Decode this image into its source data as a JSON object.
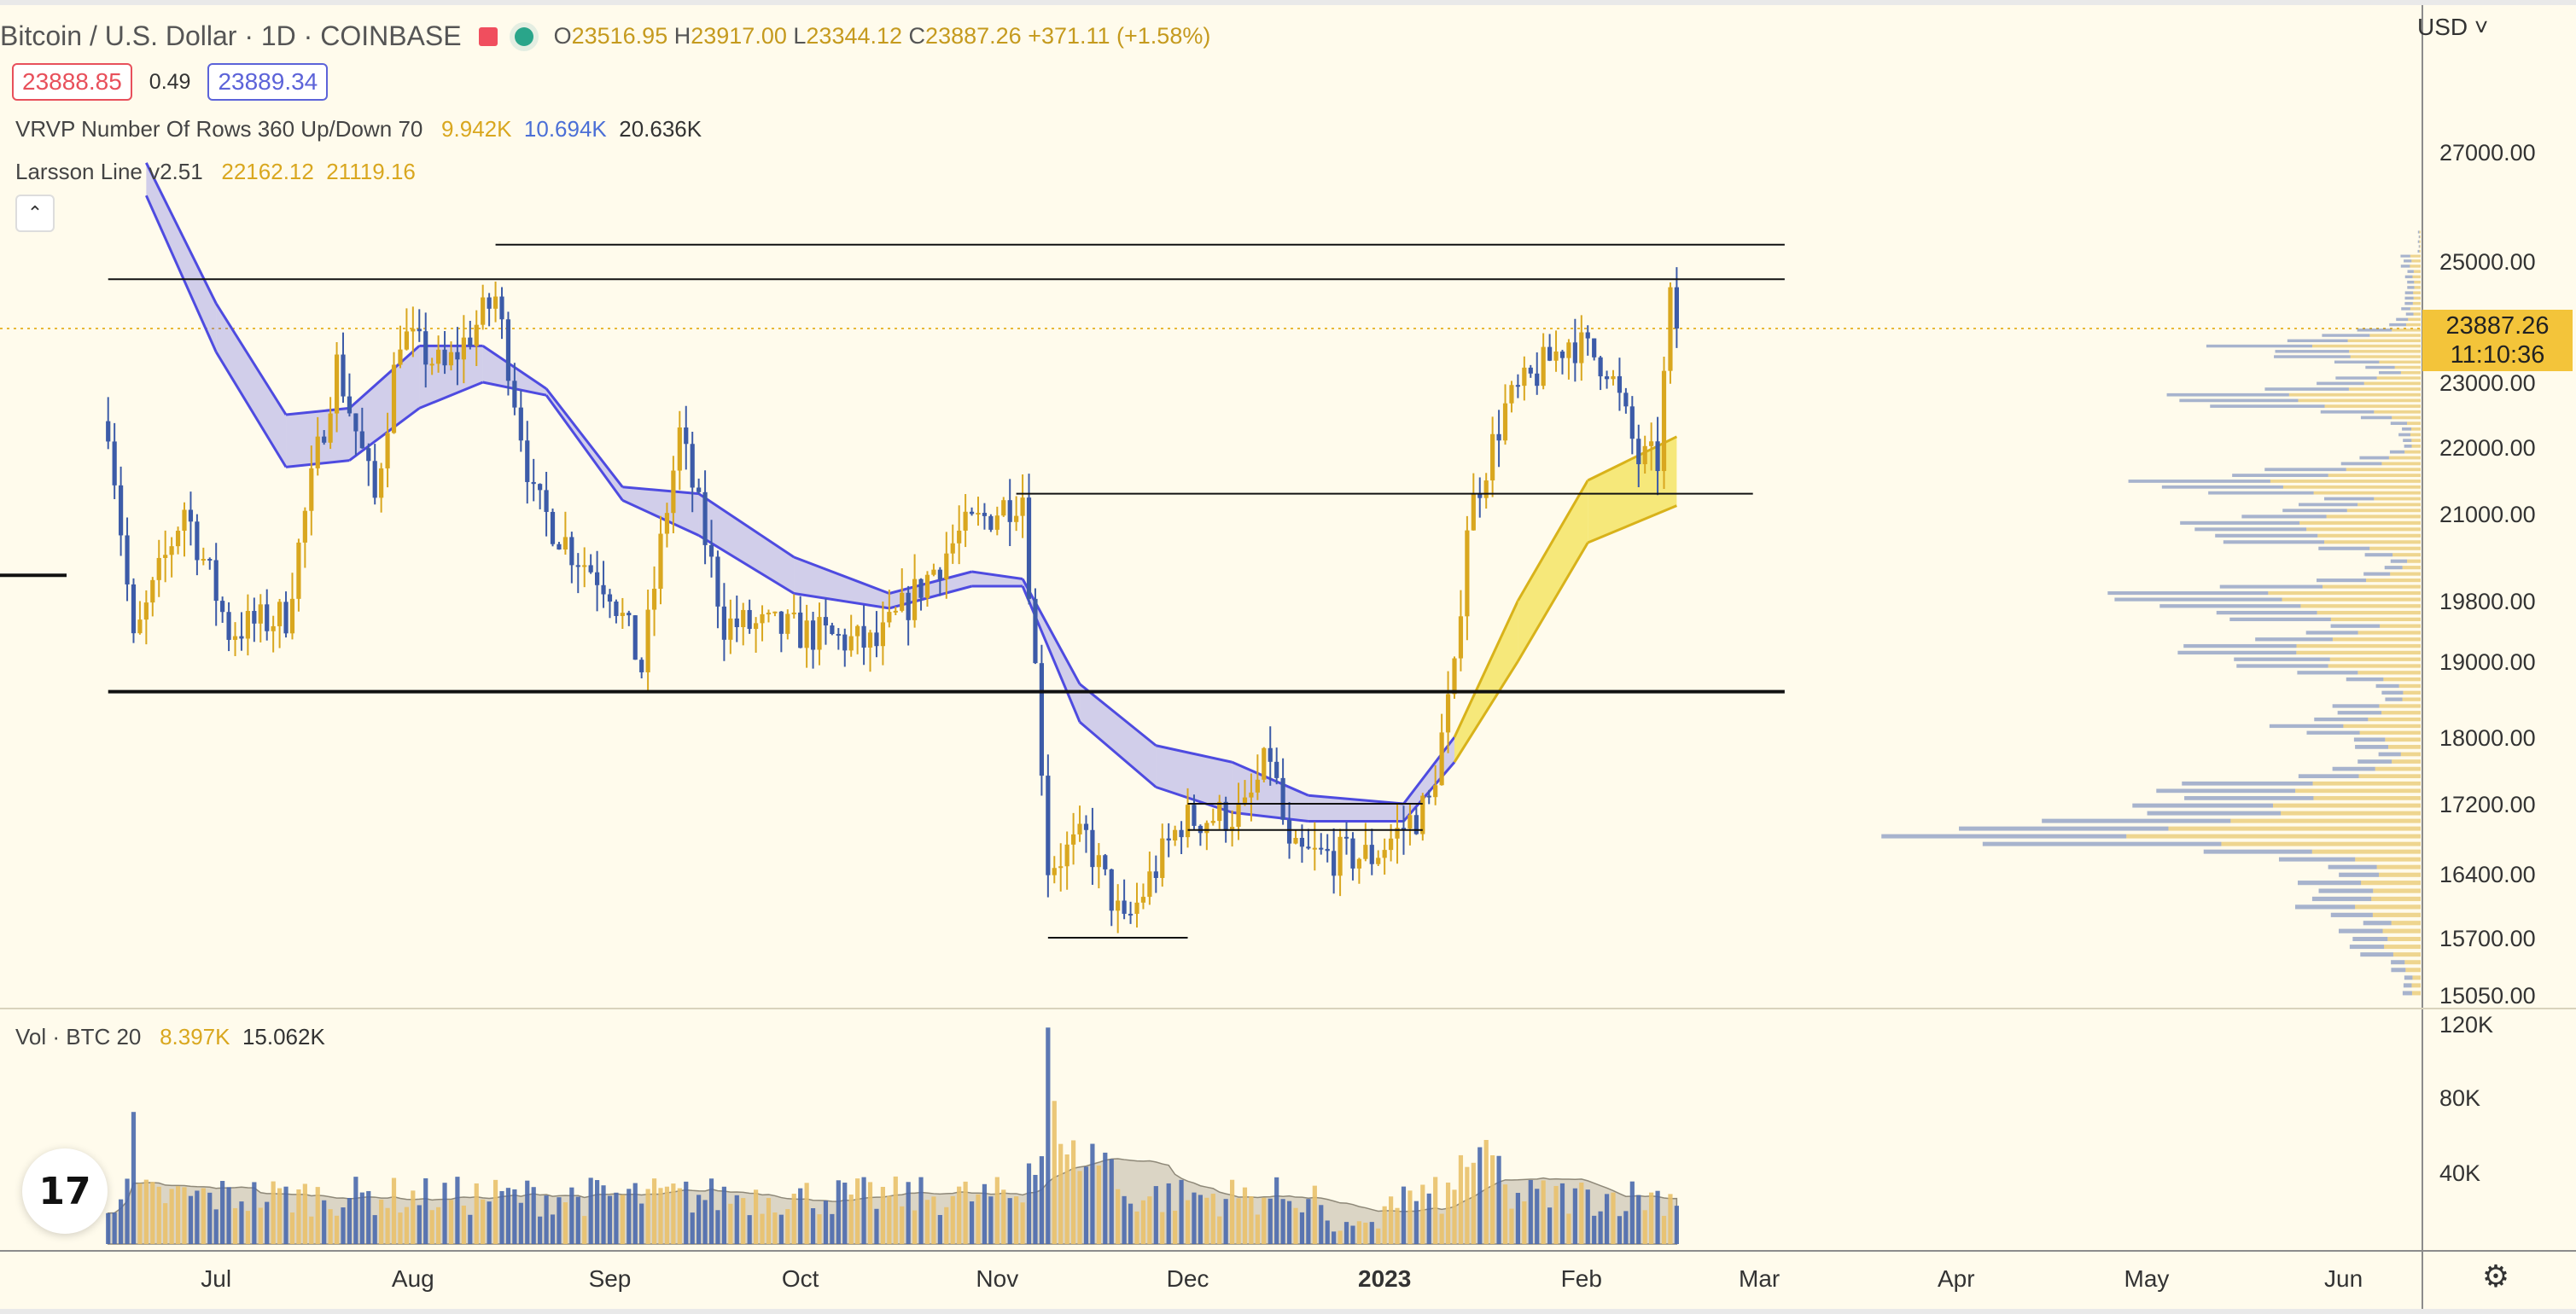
{
  "header": {
    "symbol": "Bitcoin / U.S. Dollar · 1D · COINBASE",
    "ohlc": {
      "o_label": "O",
      "o": "23516.95",
      "h_label": "H",
      "h": "23917.00",
      "l_label": "L",
      "l": "23344.12",
      "c_label": "C",
      "c": "23887.26",
      "change": "+371.11 (+1.58%)"
    },
    "bid": "23888.85",
    "spread": "0.49",
    "ask": "23889.34"
  },
  "indicators": {
    "vrvp": {
      "label": "VRVP Number Of Rows 360 Up/Down 70",
      "up": "9.942K",
      "down": "10.694K",
      "total": "20.636K"
    },
    "larsson": {
      "label": "Larsson Line v2.51",
      "v1": "22162.12",
      "v2": "21119.16"
    },
    "volume": {
      "label": "Vol · BTC 20",
      "v1": "8.397K",
      "v2": "15.062K"
    }
  },
  "currency": "USD",
  "last_price": "23887.26",
  "countdown": "11:10:36",
  "logo_text": "17",
  "colors": {
    "up": "#d9a71f",
    "down": "#3c5ba8",
    "band_purple": "#5b58e6",
    "band_yellow": "#f2e04a",
    "background": "#fffbec"
  },
  "chart_data": {
    "type": "candlestick",
    "price_axis_labels": [
      "27000.00",
      "25000.00",
      "23000.00",
      "22000.00",
      "21000.00",
      "19800.00",
      "19000.00",
      "18000.00",
      "17200.00",
      "16400.00",
      "15700.00",
      "15050.00"
    ],
    "volume_axis_labels": [
      "120K",
      "80K",
      "40K"
    ],
    "time_axis_labels": [
      "Jul",
      "Aug",
      "Sep",
      "Oct",
      "Nov",
      "Dec",
      "2023",
      "Feb",
      "Mar",
      "Apr",
      "May",
      "Jun"
    ],
    "price_path": [
      [
        "2022-06-14",
        22400
      ],
      [
        "2022-06-18",
        19200
      ],
      [
        "2022-06-26",
        21100
      ],
      [
        "2022-07-03",
        19400
      ],
      [
        "2022-07-12",
        19600
      ],
      [
        "2022-07-20",
        23300
      ],
      [
        "2022-07-26",
        21200
      ],
      [
        "2022-07-30",
        23800
      ],
      [
        "2022-08-06",
        23200
      ],
      [
        "2022-08-14",
        24400
      ],
      [
        "2022-08-20",
        21200
      ],
      [
        "2022-08-26",
        20500
      ],
      [
        "2022-09-01",
        20000
      ],
      [
        "2022-09-06",
        18900
      ],
      [
        "2022-09-12",
        22200
      ],
      [
        "2022-09-19",
        19500
      ],
      [
        "2022-09-30",
        19400
      ],
      [
        "2022-10-13",
        19200
      ],
      [
        "2022-10-26",
        20700
      ],
      [
        "2022-11-05",
        21300
      ],
      [
        "2022-11-09",
        16500
      ],
      [
        "2022-11-15",
        16800
      ],
      [
        "2022-11-21",
        15800
      ],
      [
        "2022-11-30",
        17000
      ],
      [
        "2022-12-10",
        17100
      ],
      [
        "2022-12-14",
        17800
      ],
      [
        "2022-12-17",
        16600
      ],
      [
        "2022-12-30",
        16600
      ],
      [
        "2023-01-08",
        17200
      ],
      [
        "2023-01-12",
        18800
      ],
      [
        "2023-01-14",
        20900
      ],
      [
        "2023-01-20",
        22600
      ],
      [
        "2023-01-30",
        23700
      ],
      [
        "2023-02-05",
        23300
      ],
      [
        "2023-02-10",
        21800
      ],
      [
        "2023-02-13",
        21800
      ],
      [
        "2023-02-15",
        24300
      ],
      [
        "2023-02-16",
        23900
      ]
    ],
    "horizontal_levels": [
      {
        "value": 25300,
        "from": "2022-08-14",
        "to": "2023-03-05"
      },
      {
        "value": 24700,
        "from": "2022-06-14",
        "to": "2023-03-05"
      },
      {
        "value": 21300,
        "from": "2022-11-04",
        "to": "2023-02-28"
      },
      {
        "value": 18600,
        "from": "2022-06-14",
        "to": "2023-03-05"
      },
      {
        "value": 17200,
        "from": "2022-12-01",
        "to": "2023-01-07"
      },
      {
        "value": 16900,
        "from": "2022-12-01",
        "to": "2023-01-07"
      },
      {
        "value": 15700,
        "from": "2022-11-09",
        "to": "2022-12-01"
      }
    ],
    "larsson_line": [
      [
        "2022-06-20",
        26800,
        26200
      ],
      [
        "2022-07-01",
        24300,
        23500
      ],
      [
        "2022-07-12",
        22500,
        21700
      ],
      [
        "2022-07-22",
        22600,
        21800
      ],
      [
        "2022-08-02",
        23600,
        22600
      ],
      [
        "2022-08-12",
        23600,
        23000
      ],
      [
        "2022-08-22",
        22900,
        22800
      ],
      [
        "2022-09-03",
        21400,
        21200
      ],
      [
        "2022-09-15",
        21300,
        20700
      ],
      [
        "2022-09-30",
        20400,
        19900
      ],
      [
        "2022-10-15",
        19900,
        19700
      ],
      [
        "2022-10-28",
        20200,
        20000
      ],
      [
        "2022-11-05",
        20100,
        20000
      ],
      [
        "2022-11-14",
        18700,
        18200
      ],
      [
        "2022-11-26",
        17900,
        17400
      ],
      [
        "2022-12-08",
        17700,
        17100
      ],
      [
        "2022-12-20",
        17300,
        17000
      ],
      [
        "2023-01-04",
        17200,
        17000
      ],
      [
        "2023-01-12",
        18000,
        17700
      ],
      [
        "2023-01-22",
        19800,
        19000
      ],
      [
        "2023-02-02",
        21500,
        20600
      ],
      [
        "2023-02-16",
        22160,
        21120
      ]
    ],
    "volume_range": [
      0,
      120000
    ]
  }
}
